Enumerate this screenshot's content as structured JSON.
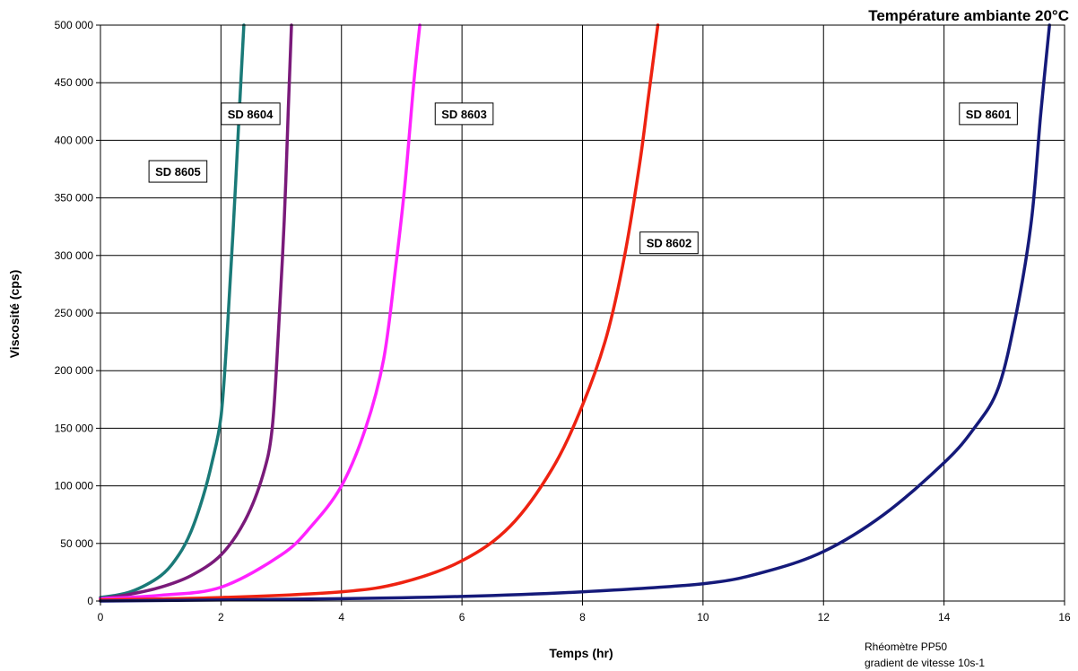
{
  "chart_data": {
    "type": "line",
    "title": "Température ambiante 20°C",
    "xlabel": "Temps (hr)",
    "ylabel": "Viscosité (cps)",
    "xlim": [
      0,
      16
    ],
    "ylim": [
      0,
      500000
    ],
    "x_ticks": [
      "0",
      "2",
      "4",
      "6",
      "8",
      "10",
      "12",
      "14",
      "16"
    ],
    "y_ticks": [
      "0",
      "50 000",
      "100 000",
      "150 000",
      "200 000",
      "250 000",
      "300 000",
      "350 000",
      "400 000",
      "450 000",
      "500 000"
    ],
    "grid": true,
    "note": [
      "Rhéomètre PP50",
      "gradient de vitesse 10s-1"
    ],
    "series": [
      {
        "name": "SD 8605",
        "color": "#1a7a78",
        "x": [
          0,
          0.5,
          1.0,
          1.3,
          1.5,
          1.7,
          1.85,
          2.0,
          2.1,
          2.2,
          2.3,
          2.38
        ],
        "y": [
          3000,
          8000,
          22000,
          40000,
          60000,
          90000,
          120000,
          160000,
          230000,
          320000,
          420000,
          500000
        ]
      },
      {
        "name": "SD 8604",
        "color": "#7a1a7a",
        "x": [
          0,
          0.5,
          1.0,
          1.5,
          2.0,
          2.4,
          2.7,
          2.85,
          2.95,
          3.05,
          3.12,
          3.17
        ],
        "y": [
          2000,
          6000,
          12000,
          22000,
          40000,
          70000,
          110000,
          150000,
          230000,
          330000,
          430000,
          500000
        ]
      },
      {
        "name": "SD 8603",
        "color": "#ff22ff",
        "x": [
          0,
          1.0,
          2.0,
          3.0,
          3.5,
          4.0,
          4.4,
          4.7,
          4.9,
          5.05,
          5.2,
          5.3
        ],
        "y": [
          2000,
          5000,
          12000,
          40000,
          65000,
          100000,
          150000,
          210000,
          290000,
          360000,
          450000,
          500000
        ]
      },
      {
        "name": "SD 8602",
        "color": "#ee2211",
        "x": [
          0,
          2.0,
          4.0,
          5.0,
          6.0,
          6.8,
          7.5,
          8.0,
          8.4,
          8.7,
          8.95,
          9.1,
          9.25
        ],
        "y": [
          1000,
          3000,
          8000,
          16000,
          35000,
          65000,
          115000,
          170000,
          230000,
          300000,
          380000,
          440000,
          500000
        ]
      },
      {
        "name": "SD 8601",
        "color": "#151a7a",
        "x": [
          0,
          4.0,
          6.0,
          8.0,
          10.0,
          11.0,
          12.0,
          13.0,
          14.0,
          14.5,
          14.9,
          15.2,
          15.45,
          15.6,
          15.75
        ],
        "y": [
          0,
          2000,
          4000,
          8000,
          15000,
          25000,
          43000,
          75000,
          120000,
          150000,
          185000,
          250000,
          330000,
          420000,
          500000
        ]
      }
    ],
    "labels": [
      {
        "text": "SD 8605",
        "series": "SD 8605",
        "x": 0.85,
        "y": 373000
      },
      {
        "text": "SD 8604",
        "series": "SD 8604",
        "x": 2.05,
        "y": 423000
      },
      {
        "text": "SD 8603",
        "series": "SD 8603",
        "x": 5.6,
        "y": 423000
      },
      {
        "text": "SD 8602",
        "series": "SD 8602",
        "x": 9.0,
        "y": 311000
      },
      {
        "text": "SD 8601",
        "series": "SD 8601",
        "x": 14.3,
        "y": 423000
      }
    ]
  }
}
